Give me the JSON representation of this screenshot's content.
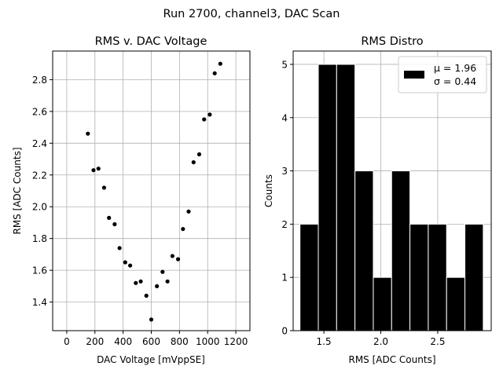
{
  "figure": {
    "suptitle": "Run 2700, channel3, DAC Scan"
  },
  "chart_data": [
    {
      "type": "scatter",
      "title": "RMS v. DAC Voltage",
      "xlabel": "DAC Voltage [mVppSE]",
      "ylabel": "RMS [ADC Counts]",
      "xlim": [
        -100,
        1300
      ],
      "ylim": [
        1.22,
        2.98
      ],
      "xticks": [
        0,
        200,
        400,
        600,
        800,
        1000,
        1200
      ],
      "xtick_labels": [
        "0",
        "200",
        "400",
        "600",
        "800",
        "1000",
        "1200"
      ],
      "yticks": [
        1.4,
        1.6,
        1.8,
        2.0,
        2.2,
        2.4,
        2.6,
        2.8
      ],
      "ytick_labels": [
        "1.4",
        "1.6",
        "1.8",
        "2.0",
        "2.2",
        "2.4",
        "2.6",
        "2.8"
      ],
      "grid": true,
      "marker_color": "#000000",
      "series": [
        {
          "x": [
            150,
            190,
            225,
            265,
            300,
            340,
            375,
            415,
            450,
            490,
            525,
            565,
            600,
            640,
            680,
            715,
            750,
            790,
            825,
            865,
            900,
            940,
            975,
            1015,
            1050,
            1090
          ],
          "y": [
            2.46,
            2.23,
            2.24,
            2.12,
            1.93,
            1.89,
            1.74,
            1.65,
            1.63,
            1.52,
            1.53,
            1.44,
            1.29,
            1.5,
            1.59,
            1.53,
            1.69,
            1.67,
            1.86,
            1.97,
            2.28,
            2.33,
            2.55,
            2.58,
            2.84,
            2.9
          ]
        }
      ]
    },
    {
      "type": "bar",
      "title": "RMS Distro",
      "xlabel": "RMS [ADC Counts]",
      "ylabel": "Counts",
      "xlim": [
        1.23,
        2.97
      ],
      "ylim": [
        0,
        5.25
      ],
      "xticks": [
        1.5,
        2.0,
        2.5
      ],
      "xtick_labels": [
        "1.5",
        "2.0",
        "2.5"
      ],
      "yticks": [
        0,
        1,
        2,
        3,
        4,
        5
      ],
      "ytick_labels": [
        "0",
        "1",
        "2",
        "3",
        "4",
        "5"
      ],
      "grid": true,
      "bar_color": "#000000",
      "bin_edges": [
        1.29,
        1.451,
        1.612,
        1.773,
        1.934,
        2.095,
        2.256,
        2.417,
        2.578,
        2.739,
        2.9
      ],
      "values": [
        2,
        5,
        5,
        3,
        1,
        3,
        2,
        2,
        1,
        2
      ],
      "legend": {
        "placement": "top-right",
        "mu": "μ = 1.96",
        "sigma": "σ = 0.44"
      }
    }
  ]
}
